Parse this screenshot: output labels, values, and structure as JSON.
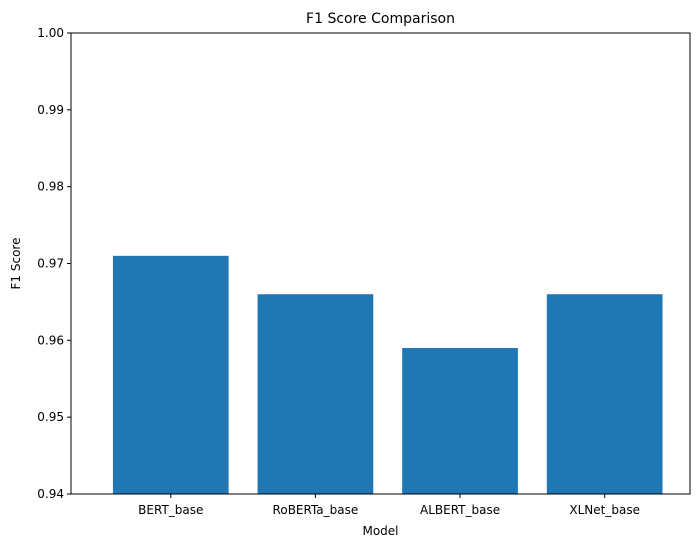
{
  "chart_data": {
    "type": "bar",
    "title": "F1 Score Comparison",
    "xlabel": "Model",
    "ylabel": "F1 Score",
    "categories": [
      "BERT_base",
      "RoBERTa_base",
      "ALBERT_base",
      "XLNet_base"
    ],
    "values": [
      0.971,
      0.966,
      0.959,
      0.966
    ],
    "ylim": [
      0.94,
      1.0
    ],
    "yticks": [
      0.94,
      0.95,
      0.96,
      0.97,
      0.98,
      0.99,
      1.0
    ],
    "ytick_labels": [
      "0.94",
      "0.95",
      "0.96",
      "0.97",
      "0.98",
      "0.99",
      "1.00"
    ],
    "grid": false,
    "legend": "none",
    "bar_color": "#1f77b4"
  }
}
